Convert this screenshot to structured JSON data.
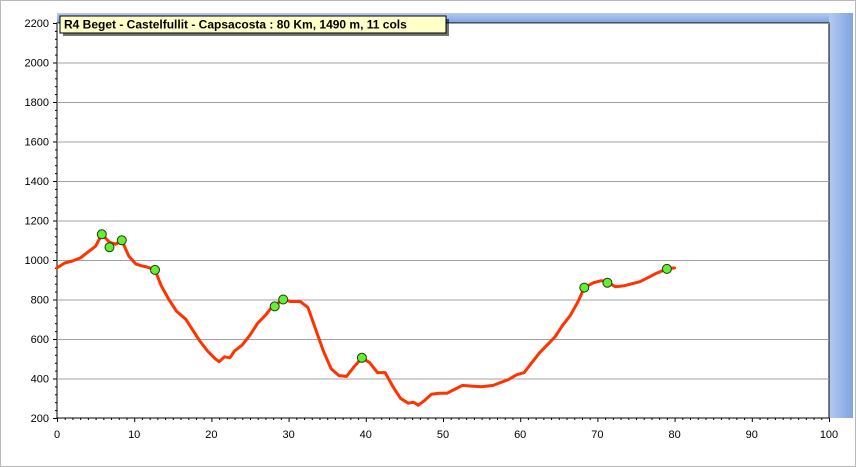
{
  "chart_data": {
    "type": "line",
    "title": "R4 Beget - Castelfullit - Capsacosta : 80 Km, 1490 m, 11 cols",
    "xlabel": "",
    "ylabel": "",
    "xlim": [
      0,
      100
    ],
    "ylim": [
      200,
      2200
    ],
    "x_ticks": [
      0,
      10,
      20,
      30,
      40,
      50,
      60,
      70,
      80,
      90,
      100
    ],
    "y_ticks": [
      200,
      400,
      600,
      800,
      1000,
      1200,
      1400,
      1600,
      1800,
      2000,
      2200
    ],
    "grid": true,
    "line_color": "#ff3300",
    "marker_color": "#66ee33",
    "background_band_color": "#b4cbf1",
    "series": [
      {
        "points": [
          [
            0,
            960
          ],
          [
            1,
            985
          ],
          [
            2,
            995
          ],
          [
            3,
            1010
          ],
          [
            4,
            1040
          ],
          [
            5,
            1070
          ],
          [
            5.8,
            1130
          ],
          [
            6.8,
            1090
          ],
          [
            7.6,
            1080
          ],
          [
            8.4,
            1100
          ],
          [
            9.3,
            1020
          ],
          [
            10.2,
            980
          ],
          [
            11,
            970
          ],
          [
            11.6,
            965
          ],
          [
            12.7,
            950
          ],
          [
            13.5,
            870
          ],
          [
            14.5,
            800
          ],
          [
            15.5,
            740
          ],
          [
            16.7,
            700
          ],
          [
            17.5,
            650
          ],
          [
            18.5,
            590
          ],
          [
            19.5,
            540
          ],
          [
            20.5,
            500
          ],
          [
            21,
            485
          ],
          [
            21.7,
            510
          ],
          [
            22.4,
            505
          ],
          [
            23,
            540
          ],
          [
            24,
            570
          ],
          [
            25,
            620
          ],
          [
            26,
            680
          ],
          [
            27,
            720
          ],
          [
            27.8,
            760
          ],
          [
            28.2,
            765
          ],
          [
            29,
            795
          ],
          [
            29.5,
            800
          ],
          [
            30.2,
            790
          ],
          [
            31.5,
            790
          ],
          [
            32.5,
            760
          ],
          [
            33.5,
            650
          ],
          [
            34.5,
            540
          ],
          [
            35.5,
            450
          ],
          [
            36.5,
            415
          ],
          [
            37.5,
            410
          ],
          [
            38.5,
            460
          ],
          [
            39.5,
            505
          ],
          [
            40.5,
            480
          ],
          [
            41.5,
            430
          ],
          [
            42.5,
            430
          ],
          [
            43.5,
            360
          ],
          [
            44.5,
            300
          ],
          [
            45.5,
            275
          ],
          [
            46.2,
            280
          ],
          [
            46.8,
            265
          ],
          [
            47.5,
            285
          ],
          [
            48.5,
            320
          ],
          [
            49.5,
            325
          ],
          [
            50.5,
            325
          ],
          [
            51.5,
            345
          ],
          [
            52.5,
            365
          ],
          [
            53.5,
            362
          ],
          [
            55,
            358
          ],
          [
            56.5,
            365
          ],
          [
            57.5,
            380
          ],
          [
            58.5,
            395
          ],
          [
            59.5,
            418
          ],
          [
            60.5,
            430
          ],
          [
            61.5,
            480
          ],
          [
            62.5,
            530
          ],
          [
            63.5,
            570
          ],
          [
            64.5,
            610
          ],
          [
            65.5,
            670
          ],
          [
            66.5,
            720
          ],
          [
            67.5,
            790
          ],
          [
            68.3,
            860
          ],
          [
            69.5,
            885
          ],
          [
            70.5,
            895
          ],
          [
            71.3,
            890
          ],
          [
            72.3,
            865
          ],
          [
            73.5,
            870
          ],
          [
            74.5,
            880
          ],
          [
            75.5,
            890
          ],
          [
            76.5,
            910
          ],
          [
            77.5,
            930
          ],
          [
            79,
            955
          ],
          [
            80,
            960
          ]
        ],
        "markers": [
          [
            5.8,
            1130
          ],
          [
            6.8,
            1065
          ],
          [
            8.4,
            1100
          ],
          [
            12.7,
            950
          ],
          [
            28.2,
            765
          ],
          [
            29.3,
            800
          ],
          [
            39.5,
            505
          ],
          [
            68.3,
            860
          ],
          [
            71.3,
            885
          ],
          [
            79,
            955
          ]
        ]
      }
    ]
  }
}
